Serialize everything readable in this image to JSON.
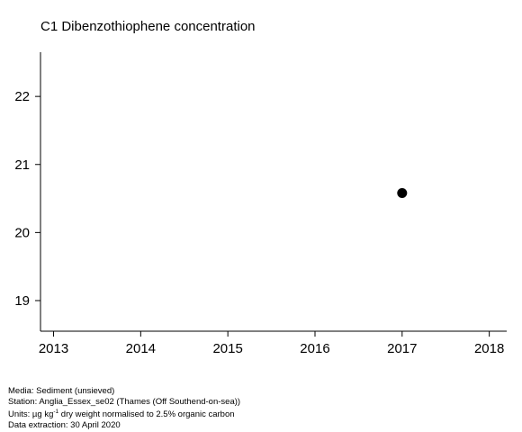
{
  "chart_data": {
    "type": "scatter",
    "title": "C1 Dibenzothiophene concentration",
    "xlabel": "",
    "ylabel": "",
    "xlim": [
      2012.85,
      2018.2
    ],
    "ylim": [
      18.55,
      22.65
    ],
    "xticks": [
      2013,
      2014,
      2015,
      2016,
      2017,
      2018
    ],
    "yticks": [
      19,
      20,
      21,
      22
    ],
    "points": [
      {
        "x": 2017,
        "y": 20.58
      }
    ],
    "marker_color": "#000000",
    "grid": false
  },
  "footer": {
    "media": "Media: Sediment (unsieved)",
    "station": "Station: Anglia_Essex_se02 (Thames (Off Southend-on-sea))",
    "units_prefix": "Units:  µg kg",
    "units_sup": "-1",
    "units_suffix": " dry weight normalised to 2.5% organic carbon",
    "extraction": "Data extraction: 30 April 2020"
  }
}
